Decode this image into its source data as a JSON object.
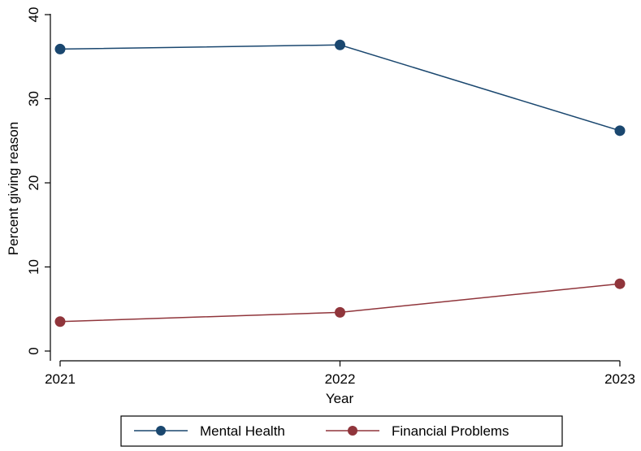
{
  "chart_data": {
    "type": "line",
    "title": "",
    "xlabel": "Year",
    "ylabel": "Percent giving reason",
    "x": [
      2021,
      2022,
      2023
    ],
    "x_tick_labels": [
      "2021",
      "2022",
      "2023"
    ],
    "y_ticks": [
      0,
      10,
      20,
      30,
      40
    ],
    "y_tick_labels": [
      "0",
      "10",
      "20",
      "30",
      "40"
    ],
    "xlim": [
      2021,
      2023
    ],
    "ylim": [
      0,
      40
    ],
    "grid": false,
    "legend_position": "bottom",
    "series": [
      {
        "name": "Mental Health",
        "color": "#1a476f",
        "values": [
          35.9,
          36.4,
          26.2
        ]
      },
      {
        "name": "Financial Problems",
        "color": "#90353b",
        "values": [
          3.5,
          4.6,
          8.0
        ]
      }
    ]
  }
}
